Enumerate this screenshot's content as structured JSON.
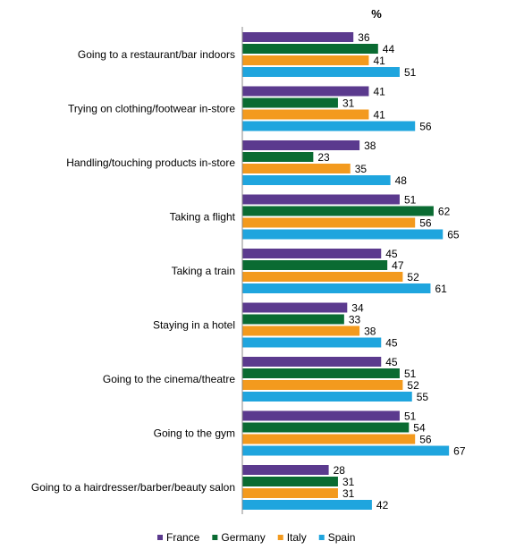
{
  "chart_data": {
    "type": "bar",
    "orientation": "horizontal",
    "unit_label": "%",
    "categories": [
      "Going to a restaurant/bar indoors",
      "Trying on clothing/footwear in-store",
      "Handling/touching products in-store",
      "Taking a flight",
      "Taking a train",
      "Staying in a hotel",
      "Going to the cinema/theatre",
      "Going to the gym",
      "Going to a hairdresser/barber/beauty salon"
    ],
    "series": [
      {
        "name": "France",
        "color": "#5B3A8E",
        "values": [
          36,
          41,
          38,
          51,
          45,
          34,
          45,
          51,
          28
        ]
      },
      {
        "name": "Germany",
        "color": "#0A6B32",
        "values": [
          44,
          31,
          23,
          62,
          47,
          33,
          51,
          54,
          31
        ]
      },
      {
        "name": "Italy",
        "color": "#F39A1E",
        "values": [
          41,
          41,
          35,
          56,
          52,
          38,
          52,
          56,
          31
        ]
      },
      {
        "name": "Spain",
        "color": "#1FA5DE",
        "values": [
          51,
          56,
          48,
          65,
          61,
          45,
          55,
          67,
          42
        ]
      }
    ],
    "xlim": [
      0,
      100
    ],
    "grid": false,
    "legend": "bottom"
  }
}
